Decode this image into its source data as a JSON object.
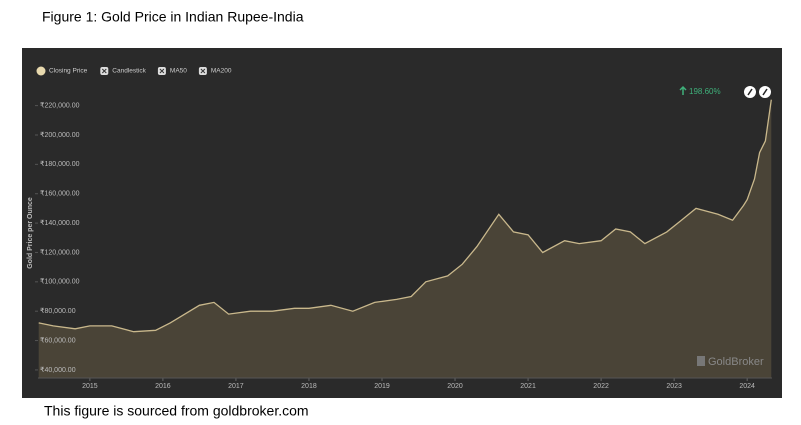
{
  "caption": "Figure 1: Gold Price in Indian Rupee-India",
  "source": "This figure is sourced from goldbroker.com",
  "chart_data": {
    "type": "area",
    "y_label": "Gold Price per Ounce",
    "annotation": "198.60%",
    "watermark": "GoldBroker",
    "legend_toggles": [
      "Candlestick",
      "MA50",
      "MA200"
    ],
    "grid": false,
    "x": [
      2014.3,
      2014.5,
      2014.8,
      2015.0,
      2015.3,
      2015.6,
      2015.9,
      2016.1,
      2016.5,
      2016.7,
      2016.9,
      2017.2,
      2017.5,
      2017.8,
      2018.0,
      2018.3,
      2018.6,
      2018.9,
      2019.2,
      2019.4,
      2019.6,
      2019.9,
      2020.1,
      2020.3,
      2020.6,
      2020.8,
      2021.0,
      2021.2,
      2021.5,
      2021.7,
      2022.0,
      2022.2,
      2022.4,
      2022.6,
      2022.9,
      2023.1,
      2023.3,
      2023.6,
      2023.8,
      2023.95,
      2024.0,
      2024.1,
      2024.17,
      2024.25,
      2024.33
    ],
    "series": [
      {
        "name": "Closing Price",
        "color": "#c9b88c",
        "fill": "#4a4437",
        "values": [
          72000,
          70000,
          68000,
          70000,
          70000,
          66000,
          67000,
          72000,
          84000,
          86000,
          78000,
          80000,
          80000,
          82000,
          82000,
          84000,
          80000,
          86000,
          88000,
          90000,
          100000,
          104000,
          112000,
          124000,
          146000,
          134000,
          132000,
          120000,
          128000,
          126000,
          128000,
          136000,
          134000,
          126000,
          134000,
          142000,
          150000,
          146000,
          142000,
          152000,
          156000,
          170000,
          188000,
          196000,
          224000
        ]
      }
    ],
    "xlim": [
      2014.29,
      2024.34
    ],
    "xticks": [
      2015,
      2016,
      2017,
      2018,
      2019,
      2020,
      2021,
      2022,
      2023,
      2024
    ],
    "ylim": [
      34500,
      232000
    ],
    "yticks": [
      {
        "value": 40000,
        "label": "₹40,000.00"
      },
      {
        "value": 60000,
        "label": "₹60,000.00"
      },
      {
        "value": 80000,
        "label": "₹80,000.00"
      },
      {
        "value": 100000,
        "label": "₹100,000.00"
      },
      {
        "value": 120000,
        "label": "₹120,000.00"
      },
      {
        "value": 140000,
        "label": "₹140,000.00"
      },
      {
        "value": 160000,
        "label": "₹160,000.00"
      },
      {
        "value": 180000,
        "label": "₹180,000.00"
      },
      {
        "value": 200000,
        "label": "₹200,000.00"
      },
      {
        "value": 220000,
        "label": "₹220,000.00"
      }
    ]
  }
}
